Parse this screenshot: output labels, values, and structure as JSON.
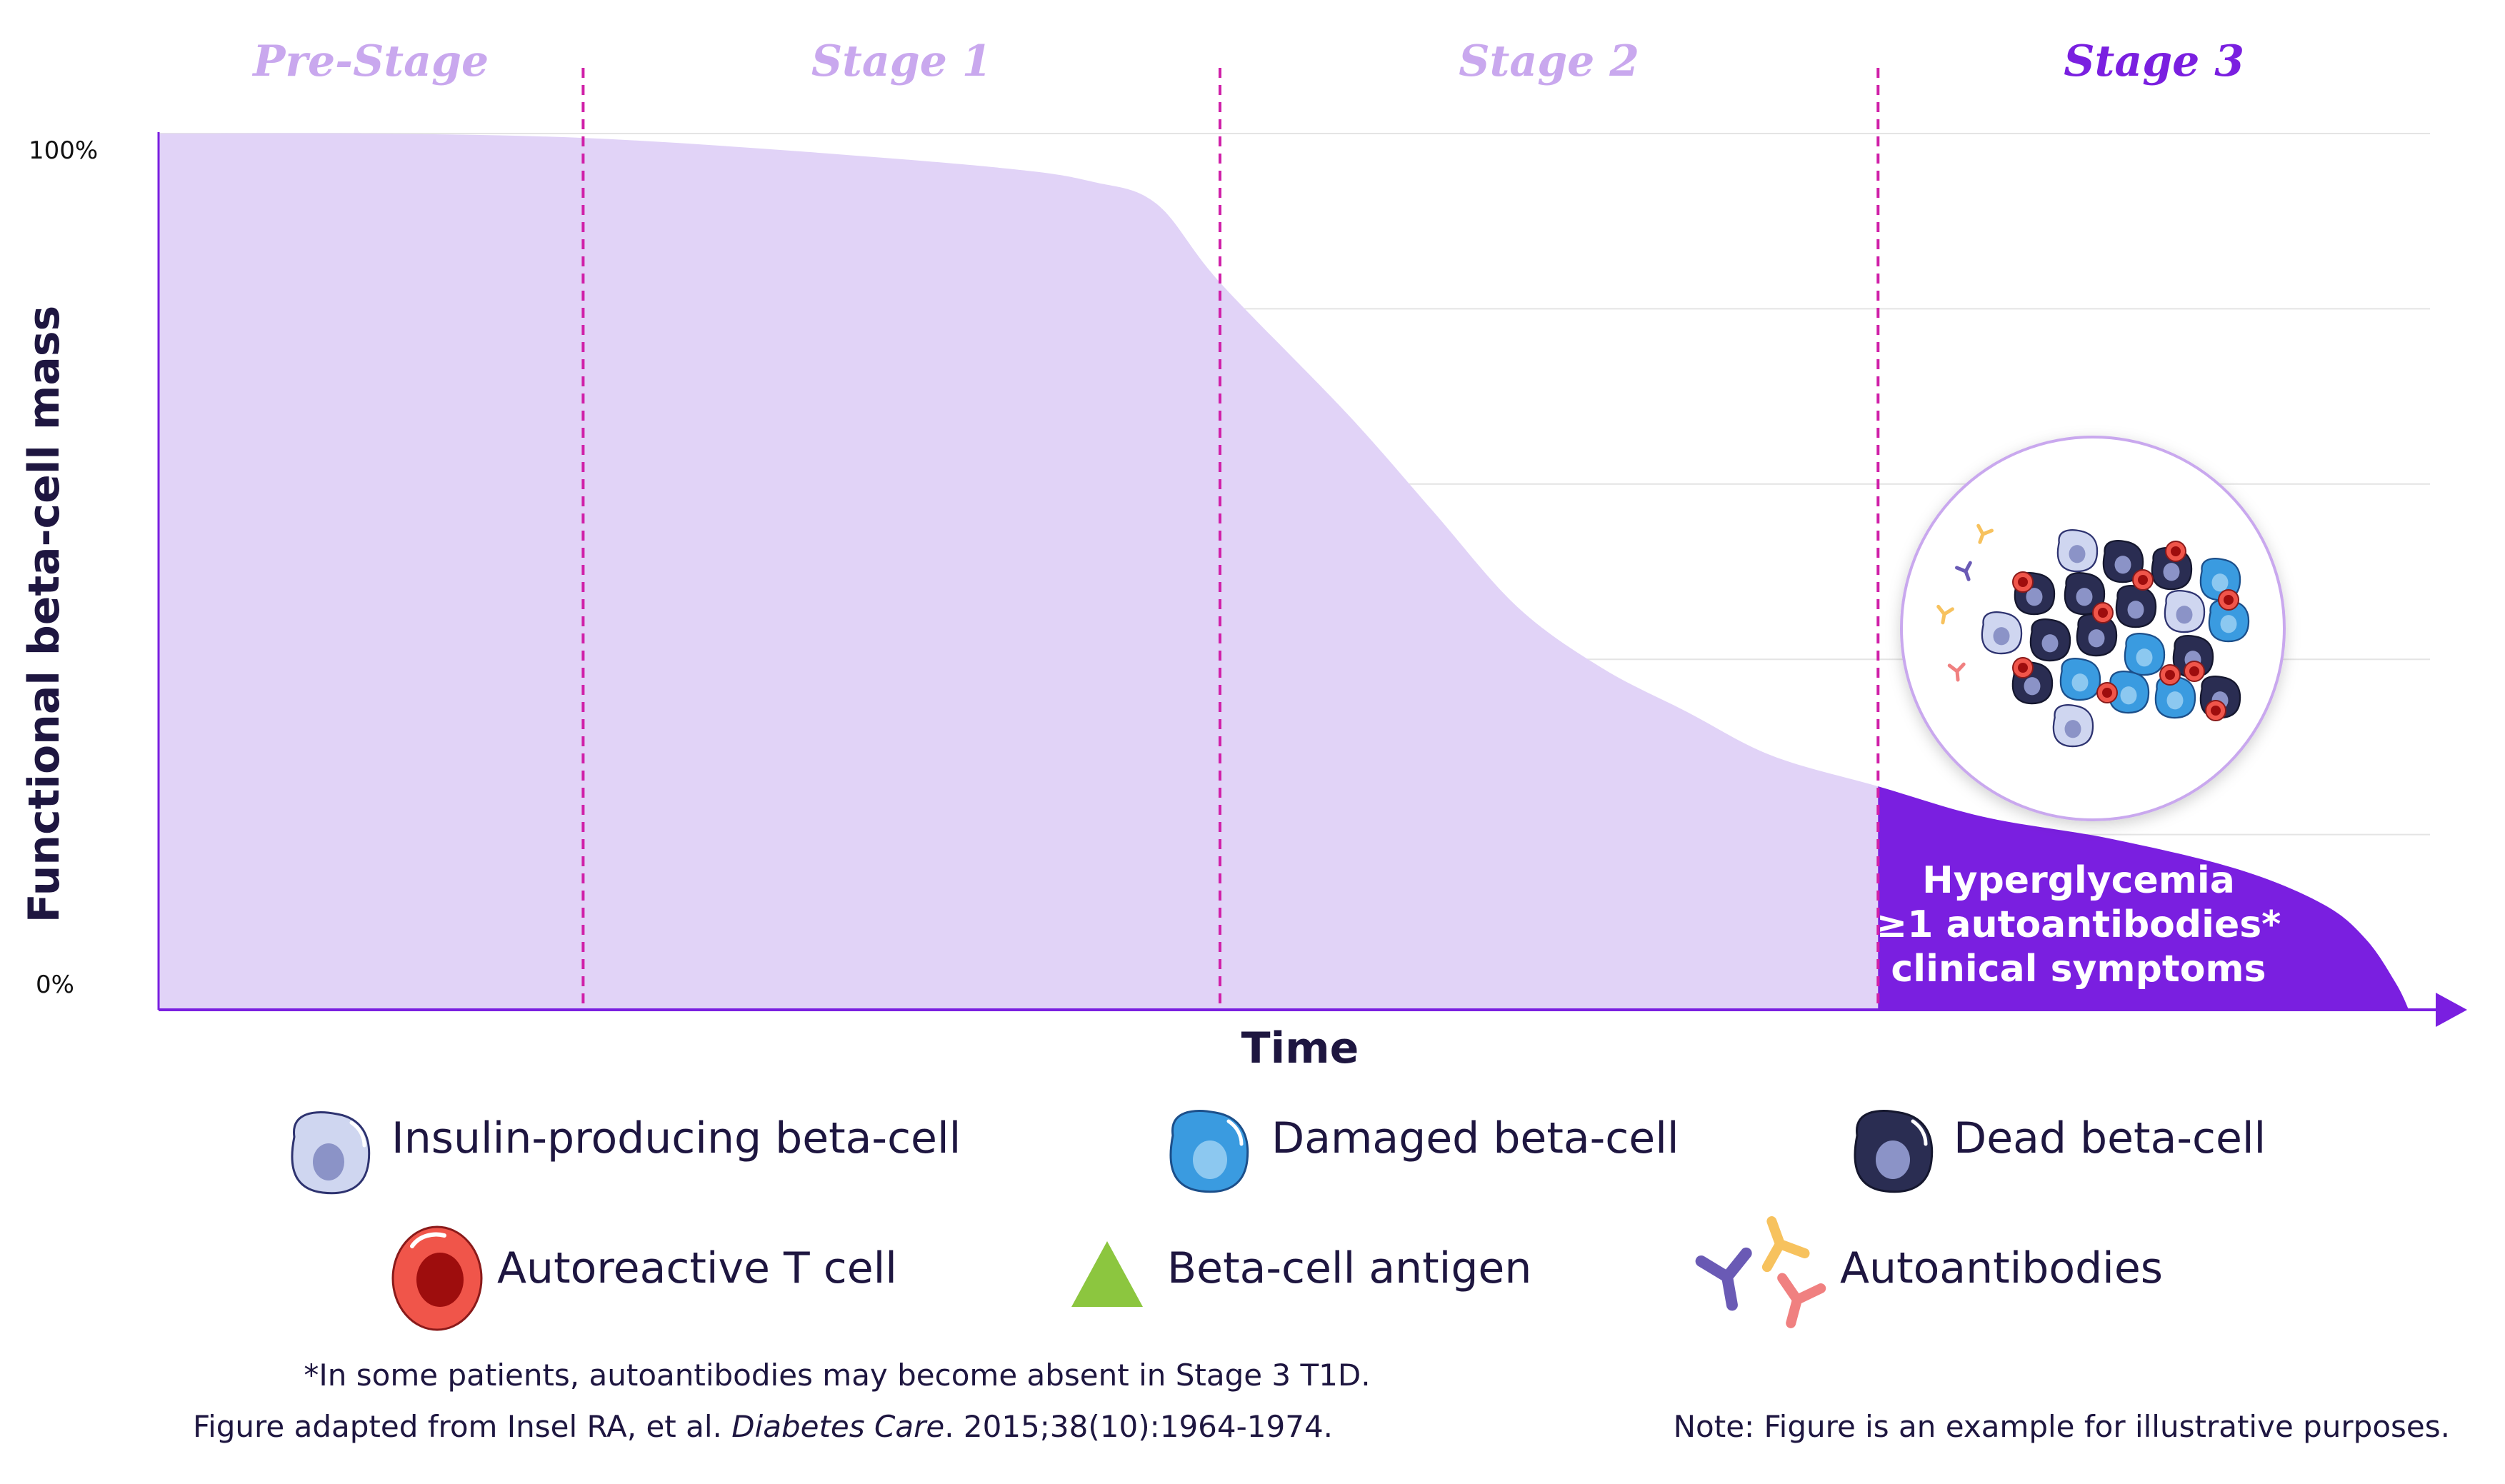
{
  "chart_data": {
    "type": "area",
    "stages": [
      {
        "label": "Pre-Stage",
        "x_start": 0,
        "x_end": 1,
        "color": "#c9a8ee"
      },
      {
        "label": "Stage 1",
        "x_start": 1,
        "x_end": 2.5,
        "color": "#c9a8ee"
      },
      {
        "label": "Stage 2",
        "x_start": 2.5,
        "x_end": 4.05,
        "color": "#c9a8ee"
      },
      {
        "label": "Stage 3",
        "x_start": 4.05,
        "x_end": 5.35,
        "color": "#7a1fe0"
      }
    ],
    "series": [
      {
        "values_x": [
          0,
          0.5,
          1,
          1.5,
          2.0,
          2.2,
          2.35,
          2.5,
          2.8,
          3.0,
          3.2,
          3.4,
          3.6,
          3.8,
          4.05,
          4.3,
          4.6,
          4.9,
          5.1,
          5.2,
          5.27,
          5.3
        ],
        "values_y": [
          100,
          100,
          99.5,
          98,
          96,
          94.5,
          92,
          83,
          68,
          57,
          46,
          39,
          34,
          29,
          25.5,
          22,
          19.5,
          16,
          12,
          8,
          3,
          0
        ]
      }
    ],
    "ylabel": "Functional beta-cell mass",
    "xlabel": "Time",
    "ytick_labels": [
      "100%",
      "0%"
    ],
    "ylim": [
      0,
      100
    ],
    "grid": true,
    "stage3_box_lines": [
      "Hyperglycemia",
      "≥1 autoantibodies*",
      "clinical symptoms"
    ]
  },
  "legend": {
    "items": [
      {
        "label": "Insulin-producing beta-cell",
        "icon": "healthy-beta-cell-icon",
        "color": "#cfd6f0"
      },
      {
        "label": "Damaged beta-cell",
        "icon": "damaged-beta-cell-icon",
        "color": "#3a9be0"
      },
      {
        "label": "Dead beta-cell",
        "icon": "dead-beta-cell-icon",
        "color": "#2a2d52"
      },
      {
        "label": "Autoreactive T cell",
        "icon": "t-cell-icon",
        "color": "#e83a3a"
      },
      {
        "label": "Beta-cell antigen",
        "icon": "antigen-triangle-icon",
        "color": "#8cc63f"
      },
      {
        "label": "Autoantibodies",
        "icon": "autoantibody-icon",
        "color": "#6a5ab5"
      }
    ]
  },
  "footnotes": {
    "asterisk_note": "*In some patients, autoantibodies may become absent in Stage 3 T1D.",
    "citation_prefix": "Figure adapted from Insel RA, et al. ",
    "citation_journal": "Diabetes Care",
    "citation_suffix": ". 2015;38(10):1964-1974.",
    "illustrative_note": "Note: Figure is an example for illustrative purposes."
  },
  "colors": {
    "area_light": "#e1d3f7",
    "area_dark": "#7a1fe0",
    "stage_label_light": "#c9a8ee",
    "stage_label_dark": "#7a1fe0",
    "divider": "#d020a8",
    "text_dark": "#1e1640"
  }
}
